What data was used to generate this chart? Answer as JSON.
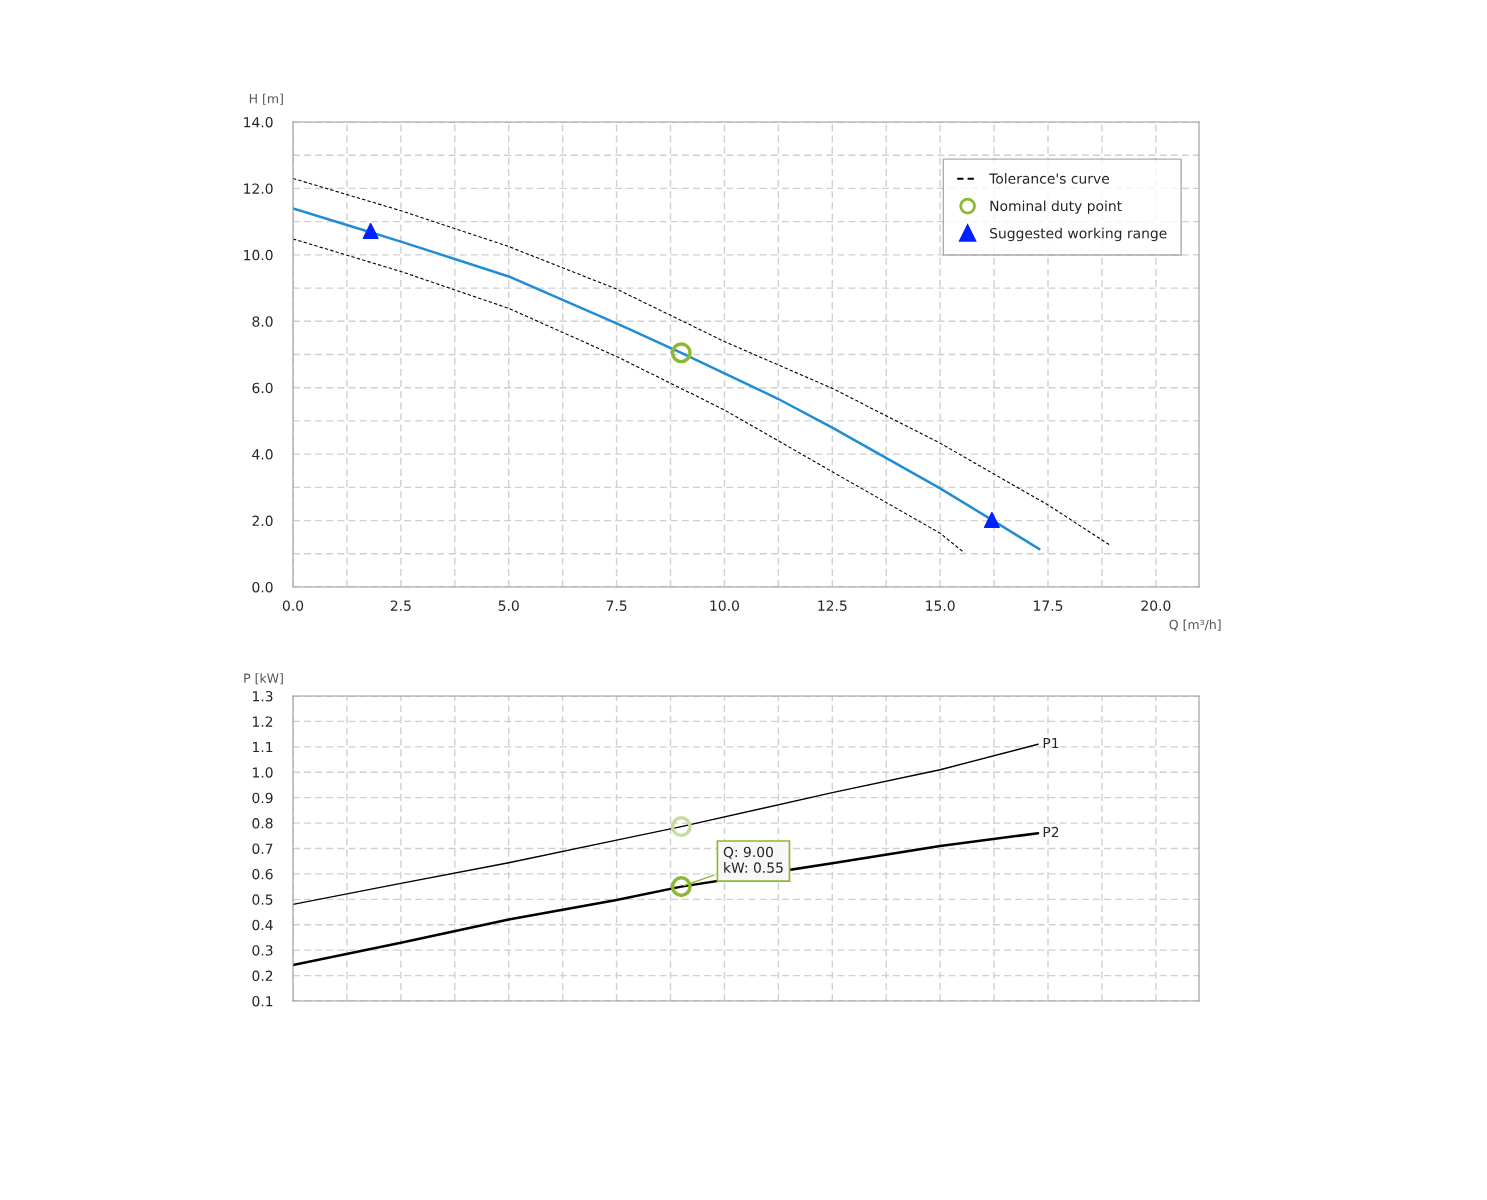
{
  "chart_data": [
    {
      "type": "line",
      "xlabel": "Q [m³/h]",
      "ylabel": "H [m]",
      "xlim": [
        0,
        21
      ],
      "ylim": [
        0,
        14
      ],
      "xticks": [
        {
          "value": 0,
          "label": "0.0"
        },
        {
          "value": 1.25,
          "label": null
        },
        {
          "value": 2.5,
          "label": "2.5"
        },
        {
          "value": 3.75,
          "label": null
        },
        {
          "value": 5,
          "label": "5.0"
        },
        {
          "value": 6.25,
          "label": null
        },
        {
          "value": 7.5,
          "label": "7.5"
        },
        {
          "value": 8.75,
          "label": null
        },
        {
          "value": 10,
          "label": "10.0"
        },
        {
          "value": 11.25,
          "label": null
        },
        {
          "value": 12.5,
          "label": "12.5"
        },
        {
          "value": 13.75,
          "label": null
        },
        {
          "value": 15,
          "label": "15.0"
        },
        {
          "value": 16.25,
          "label": null
        },
        {
          "value": 17.5,
          "label": "17.5"
        },
        {
          "value": 18.75,
          "label": null
        },
        {
          "value": 20,
          "label": "20.0"
        }
      ],
      "yticks": [
        {
          "value": 0,
          "label": "0.0"
        },
        {
          "value": 1,
          "label": null
        },
        {
          "value": 2,
          "label": "2.0"
        },
        {
          "value": 3,
          "label": null
        },
        {
          "value": 4,
          "label": "4.0"
        },
        {
          "value": 5,
          "label": null
        },
        {
          "value": 6,
          "label": "6.0"
        },
        {
          "value": 7,
          "label": null
        },
        {
          "value": 8,
          "label": "8.0"
        },
        {
          "value": 9,
          "label": null
        },
        {
          "value": 10,
          "label": "10.0"
        },
        {
          "value": 11,
          "label": null
        },
        {
          "value": 12,
          "label": "12.0"
        },
        {
          "value": 13,
          "label": null
        },
        {
          "value": 14,
          "label": "14.0"
        }
      ],
      "grid": true,
      "legend": "top right",
      "series": [
        {
          "color": "#1f8dd6",
          "line_style": "solid",
          "x": [
            0,
            1.25,
            2.5,
            5,
            7.5,
            9,
            11.25,
            12.5,
            15,
            16.2,
            17.3
          ],
          "values": [
            11.4,
            10.9,
            10.4,
            9.35,
            7.94,
            7.05,
            5.66,
            4.8,
            2.97,
            2.02,
            1.14
          ]
        },
        {
          "name": "Tolerance's curve",
          "color": "#000000",
          "line_style": "dashed",
          "x": [
            0,
            2.5,
            5,
            7.5,
            10,
            12.5,
            15,
            17.5,
            18.96
          ],
          "values": [
            12.3,
            11.33,
            10.25,
            8.97,
            7.39,
            5.98,
            4.33,
            2.47,
            1.24
          ]
        },
        {
          "color": "#000000",
          "line_style": "dashed",
          "x": [
            0,
            2.5,
            5,
            7.5,
            10,
            12.5,
            15,
            15.56
          ],
          "values": [
            10.48,
            9.5,
            8.39,
            6.94,
            5.33,
            3.47,
            1.62,
            1.03
          ]
        },
        {
          "name": "Nominal duty point",
          "type": "scatter",
          "marker": "circle",
          "color": "#8db832",
          "x": [
            9
          ],
          "values": [
            7.05
          ]
        },
        {
          "name": "Suggested working range",
          "type": "scatter",
          "marker": "triangle",
          "color": "#0022ff",
          "x": [
            1.8,
            16.2
          ],
          "values": [
            10.72,
            2.02
          ]
        }
      ]
    },
    {
      "type": "line",
      "ylabel": "P [kW]",
      "xlim": [
        0,
        21
      ],
      "ylim": [
        0.1,
        1.3
      ],
      "tick_labels": "y",
      "xticks": [
        0,
        1.25,
        2.5,
        3.75,
        5,
        6.25,
        7.5,
        8.75,
        10,
        11.25,
        12.5,
        13.75,
        15,
        16.25,
        17.5,
        18.75,
        20
      ],
      "yticks": [
        {
          "value": 0.1,
          "label": "0.1"
        },
        {
          "value": 0.2,
          "label": "0.2"
        },
        {
          "value": 0.3,
          "label": "0.3"
        },
        {
          "value": 0.4,
          "label": "0.4"
        },
        {
          "value": 0.5,
          "label": "0.5"
        },
        {
          "value": 0.6,
          "label": "0.6"
        },
        {
          "value": 0.7,
          "label": "0.7"
        },
        {
          "value": 0.8,
          "label": "0.8"
        },
        {
          "value": 0.9,
          "label": "0.9"
        },
        {
          "value": 1.0,
          "label": "1.0"
        },
        {
          "value": 1.1,
          "label": "1.1"
        },
        {
          "value": 1.2,
          "label": "1.2"
        },
        {
          "value": 1.3,
          "label": "1.3"
        }
      ],
      "grid": true,
      "series": [
        {
          "name": "P1",
          "color": "#000000",
          "line_style": "solid",
          "x": [
            0,
            2.5,
            5,
            7.5,
            9,
            12.5,
            15,
            17.27
          ],
          "values": [
            0.48,
            0.563,
            0.644,
            0.733,
            0.786,
            0.92,
            1.01,
            1.11
          ]
        },
        {
          "name": "P2",
          "color": "#000000",
          "line_style": "solid",
          "x": [
            0,
            2.5,
            5,
            7.5,
            9,
            12.5,
            15,
            17.27
          ],
          "values": [
            0.242,
            0.329,
            0.421,
            0.497,
            0.55,
            0.642,
            0.71,
            0.76
          ]
        },
        {
          "type": "scatter",
          "marker": "circle",
          "color": "#c9dca0",
          "x": [
            9
          ],
          "values": [
            0.786
          ]
        },
        {
          "type": "scatter",
          "marker": "circle",
          "color": "#8db832",
          "x": [
            9
          ],
          "values": [
            0.55
          ]
        }
      ],
      "annotations": [
        {
          "text": "Q: 9.00\nkW: 0.55",
          "x": 9,
          "y": 0.55
        }
      ]
    }
  ]
}
